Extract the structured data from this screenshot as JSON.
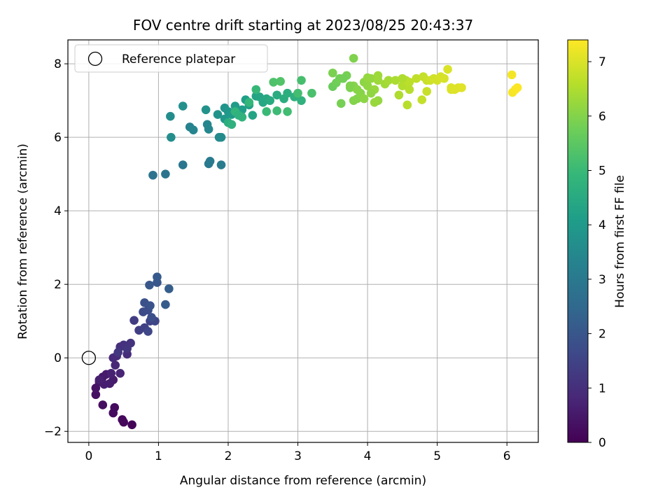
{
  "chart_data": {
    "type": "scatter",
    "title": "FOV centre drift starting at 2023/08/25 20:43:37",
    "xlabel": "Angular distance from reference (arcmin)",
    "ylabel": "Rotation from reference (arcmin)",
    "xlim": [
      -0.3,
      6.45
    ],
    "ylim": [
      -2.3,
      8.65
    ],
    "xticks": [
      0,
      1,
      2,
      3,
      4,
      5,
      6
    ],
    "yticks": [
      -2,
      0,
      2,
      4,
      6,
      8
    ],
    "grid": true,
    "legend": {
      "placement": "top-left",
      "entries": [
        "Reference platepar"
      ]
    },
    "reference_point": {
      "name": "Reference platepar",
      "x": 0,
      "y": 0
    },
    "colorbar": {
      "label": "Hours from first FF file",
      "range": [
        0,
        7.4
      ],
      "ticks": [
        0,
        1,
        2,
        3,
        4,
        5,
        6,
        7
      ],
      "colormap": "viridis",
      "colors": [
        "#440154",
        "#482878",
        "#3e4989",
        "#31688e",
        "#26828e",
        "#1f9e89",
        "#35b779",
        "#6ece58",
        "#b5de2b",
        "#fde725"
      ]
    },
    "series": [
      {
        "x": [
          0.62,
          0.5,
          0.48,
          0.37,
          0.35,
          0.2,
          0.1,
          0.1,
          0.15,
          0.2,
          0.25,
          0.35,
          0.3,
          0.22,
          0.15,
          0.32,
          0.45,
          0.38,
          0.35,
          0.4,
          0.55,
          0.45,
          0.5,
          0.6,
          0.55,
          0.42,
          0.65,
          0.72,
          0.8,
          0.88,
          0.95,
          0.85,
          0.78,
          0.85,
          0.9,
          0.8,
          0.88,
          0.98,
          0.87,
          0.98,
          1.1,
          1.15
        ],
        "y": [
          -1.82,
          -1.75,
          -1.68,
          -1.35,
          -1.5,
          -1.28,
          -1.0,
          -0.82,
          -0.65,
          -0.52,
          -0.45,
          -0.6,
          -0.7,
          -0.72,
          -0.6,
          -0.42,
          -0.42,
          -0.2,
          0.0,
          0.05,
          0.1,
          0.3,
          0.35,
          0.4,
          0.25,
          0.15,
          1.02,
          0.75,
          0.82,
          1.0,
          1.0,
          0.72,
          1.25,
          1.3,
          1.1,
          1.5,
          1.42,
          2.05,
          1.98,
          2.2,
          1.45,
          1.88
        ],
        "t": [
          0.08,
          0.12,
          0.15,
          0.2,
          0.22,
          0.28,
          0.32,
          0.38,
          0.42,
          0.48,
          0.52,
          0.56,
          0.6,
          0.62,
          0.65,
          0.7,
          0.75,
          0.8,
          0.85,
          0.9,
          0.95,
          1.0,
          1.05,
          1.1,
          1.15,
          1.2,
          1.35,
          1.4,
          1.45,
          1.5,
          1.55,
          1.6,
          1.7,
          1.75,
          1.8,
          1.85,
          1.9,
          2.0,
          2.05,
          2.1,
          2.15,
          2.2
        ]
      },
      {
        "x": [
          0.92,
          1.1,
          1.35,
          1.72,
          1.74,
          1.9,
          1.45,
          1.5,
          1.7,
          1.72,
          1.87,
          1.9,
          1.17,
          1.18,
          1.35,
          1.68,
          1.85,
          1.95,
          2.0,
          1.95,
          2.05,
          2.1,
          2.2,
          2.25,
          2.3,
          2.4,
          2.35,
          2.45,
          2.5,
          2.55,
          2.6,
          2.7,
          2.8,
          2.85,
          2.95,
          3.05,
          2.2,
          2.1,
          2.3,
          2.4,
          2.55,
          2.7,
          2.85,
          3.0,
          3.05,
          3.2,
          2.65,
          2.75,
          2.0,
          2.05,
          2.15
        ],
        "y": [
          4.97,
          5.0,
          5.25,
          5.28,
          5.35,
          5.25,
          6.28,
          6.2,
          6.35,
          6.22,
          6.0,
          6.0,
          6.57,
          6.0,
          6.85,
          6.75,
          6.62,
          6.8,
          6.7,
          6.5,
          6.62,
          6.85,
          6.75,
          7.02,
          6.88,
          7.12,
          6.6,
          7.1,
          6.95,
          7.05,
          7.0,
          7.15,
          7.05,
          7.2,
          7.1,
          7.0,
          6.55,
          6.7,
          6.95,
          7.3,
          6.7,
          6.72,
          6.7,
          7.2,
          7.55,
          7.2,
          7.5,
          7.52,
          6.4,
          6.35,
          6.6
        ],
        "t": [
          2.8,
          2.85,
          2.9,
          3.0,
          3.05,
          3.1,
          3.3,
          3.35,
          3.4,
          3.45,
          3.5,
          3.55,
          3.6,
          3.65,
          3.7,
          3.75,
          3.8,
          3.85,
          3.9,
          3.95,
          4.0,
          4.05,
          4.1,
          4.15,
          4.2,
          4.25,
          4.3,
          4.35,
          4.4,
          4.45,
          4.5,
          4.55,
          4.6,
          4.65,
          4.7,
          4.75,
          4.8,
          4.85,
          4.9,
          4.95,
          5.0,
          5.05,
          5.1,
          5.15,
          5.2,
          5.25,
          5.3,
          5.35,
          4.6,
          4.7,
          4.75
        ]
      },
      {
        "x": [
          3.5,
          3.55,
          3.6,
          3.7,
          3.75,
          3.8,
          3.85,
          3.9,
          3.95,
          4.0,
          4.05,
          4.1,
          4.15,
          3.8,
          3.85,
          3.95,
          4.05,
          4.15,
          3.62,
          4.25,
          4.3,
          4.4,
          4.45,
          4.5,
          4.55,
          4.6,
          4.5,
          4.6,
          4.7,
          4.8,
          4.85,
          4.9,
          4.95,
          5.0,
          5.05,
          5.1,
          5.15,
          5.2,
          5.25,
          5.3,
          5.35,
          4.85,
          4.78,
          4.57,
          5.2,
          3.5,
          3.8,
          4.0,
          4.1,
          4.15,
          3.65,
          3.75
        ],
        "y": [
          7.38,
          7.48,
          7.6,
          7.68,
          7.35,
          8.15,
          7.05,
          7.2,
          7.5,
          7.4,
          7.6,
          7.3,
          7.55,
          7.0,
          7.3,
          7.05,
          7.2,
          7.0,
          6.92,
          7.45,
          7.55,
          7.55,
          7.15,
          7.4,
          7.55,
          7.5,
          7.6,
          7.3,
          7.6,
          7.65,
          7.55,
          7.55,
          7.6,
          7.55,
          7.65,
          7.6,
          7.85,
          7.35,
          7.3,
          7.35,
          7.35,
          7.25,
          7.02,
          6.88,
          7.3,
          7.75,
          7.4,
          7.62,
          6.95,
          7.68,
          7.6,
          7.4
        ],
        "t": [
          5.7,
          5.75,
          5.8,
          5.85,
          5.9,
          5.95,
          6.0,
          6.05,
          6.1,
          6.15,
          6.2,
          6.25,
          6.3,
          6.0,
          6.05,
          6.1,
          6.15,
          6.2,
          5.85,
          6.35,
          6.4,
          6.45,
          6.5,
          6.55,
          6.6,
          6.65,
          6.5,
          6.6,
          6.7,
          6.75,
          6.8,
          6.85,
          6.9,
          6.92,
          6.95,
          6.97,
          7.0,
          7.02,
          7.05,
          7.05,
          7.07,
          6.8,
          6.75,
          6.6,
          7.02,
          5.9,
          6.05,
          6.2,
          6.25,
          6.3,
          5.8,
          5.95
        ]
      },
      {
        "x": [
          6.07,
          6.08,
          6.12,
          6.15
        ],
        "y": [
          7.7,
          7.22,
          7.3,
          7.35
        ],
        "t": [
          7.3,
          7.32,
          7.35,
          7.38
        ]
      }
    ]
  }
}
